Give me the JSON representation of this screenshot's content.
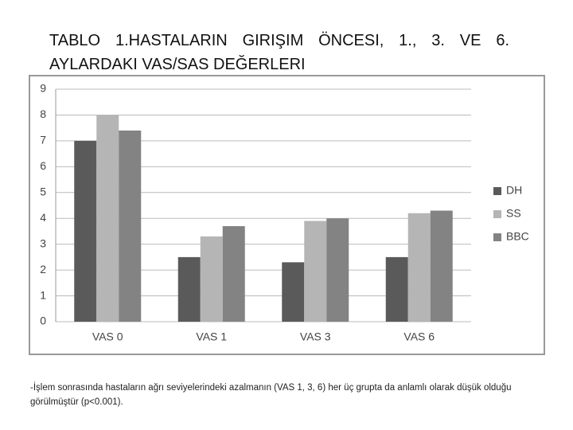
{
  "chart_data": {
    "type": "bar",
    "title": "TABLO 1.HASTALARIN GIRIŞIM ÖNCESI, 1., 3. VE 6. AYLARDAKI VAS/SAS DEĞERLERI",
    "categories": [
      "VAS 0",
      "VAS 1",
      "VAS 3",
      "VAS 6"
    ],
    "series": [
      {
        "name": "DH",
        "color": "#5a5a5a",
        "values": [
          7,
          2.5,
          2.3,
          2.5
        ]
      },
      {
        "name": "SS",
        "color": "#b5b5b5",
        "values": [
          8,
          3.3,
          3.9,
          4.2
        ]
      },
      {
        "name": "BBC",
        "color": "#838383",
        "values": [
          7.4,
          3.7,
          4.0,
          4.3
        ]
      }
    ],
    "ylim": [
      0,
      9
    ],
    "yticks": [
      0,
      1,
      2,
      3,
      4,
      5,
      6,
      7,
      8,
      9
    ],
    "grid": true,
    "legend": "right",
    "note": "-İşlem sonrasında hastaların ağrı seviyelerindeki azalmanın (VAS 1, 3, 6) her üç grupta da anlamlı olarak düşük olduğu görülmüştür (p<0.001)."
  }
}
